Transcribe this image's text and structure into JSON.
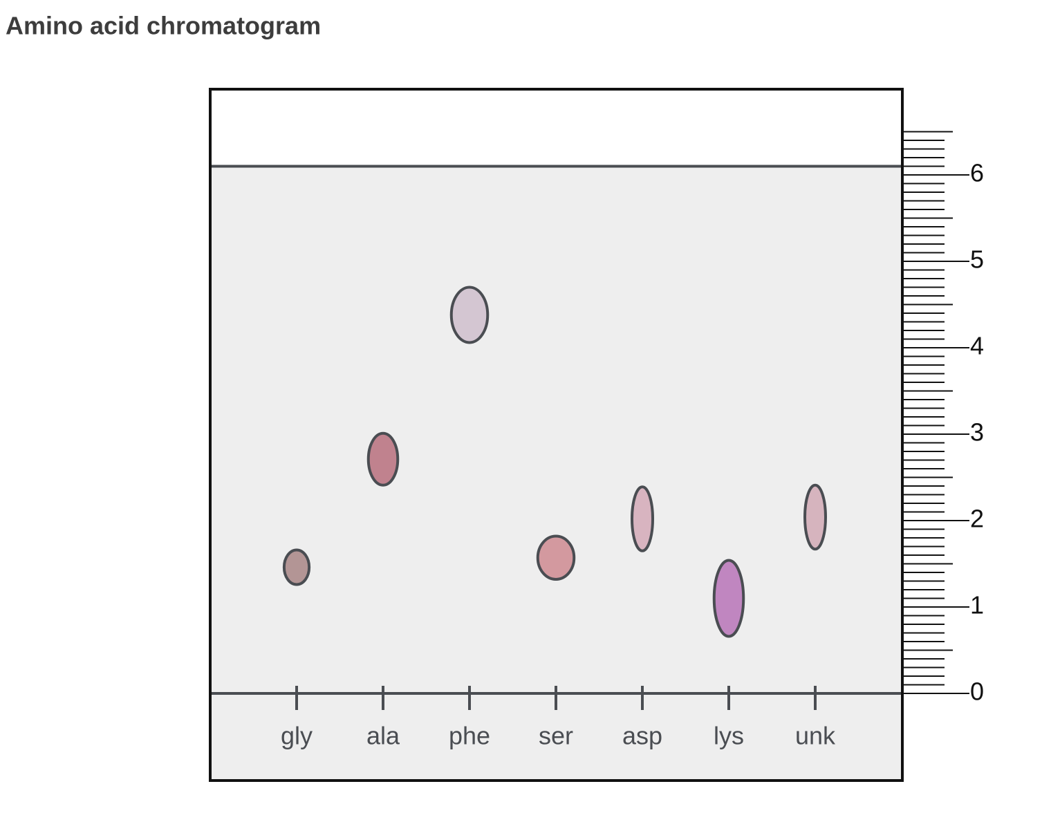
{
  "chart_data": {
    "type": "chromatogram",
    "title": "Amino acid chromatogram",
    "categories": [
      "gly",
      "ala",
      "phe",
      "ser",
      "asp",
      "lys",
      "unk"
    ],
    "values": [
      1.46,
      2.71,
      4.38,
      1.57,
      2.02,
      1.1,
      2.04
    ],
    "spot_height": [
      0.4,
      0.6,
      0.64,
      0.5,
      0.74,
      0.88,
      0.74
    ],
    "spot_width": [
      0.29,
      0.34,
      0.42,
      0.42,
      0.24,
      0.34,
      0.24
    ],
    "colors": [
      "#b39595",
      "#c0828e",
      "#d4c6d2",
      "#d3999f",
      "#d8b4c0",
      "#c086c0",
      "#d6b4be"
    ],
    "solvent_front": 6.1,
    "ylim": [
      0,
      6.5
    ],
    "yticks": [
      0,
      1,
      2,
      3,
      4,
      5,
      6
    ],
    "minor_tick_step": 0.1,
    "half_tick_step": 0.5
  }
}
